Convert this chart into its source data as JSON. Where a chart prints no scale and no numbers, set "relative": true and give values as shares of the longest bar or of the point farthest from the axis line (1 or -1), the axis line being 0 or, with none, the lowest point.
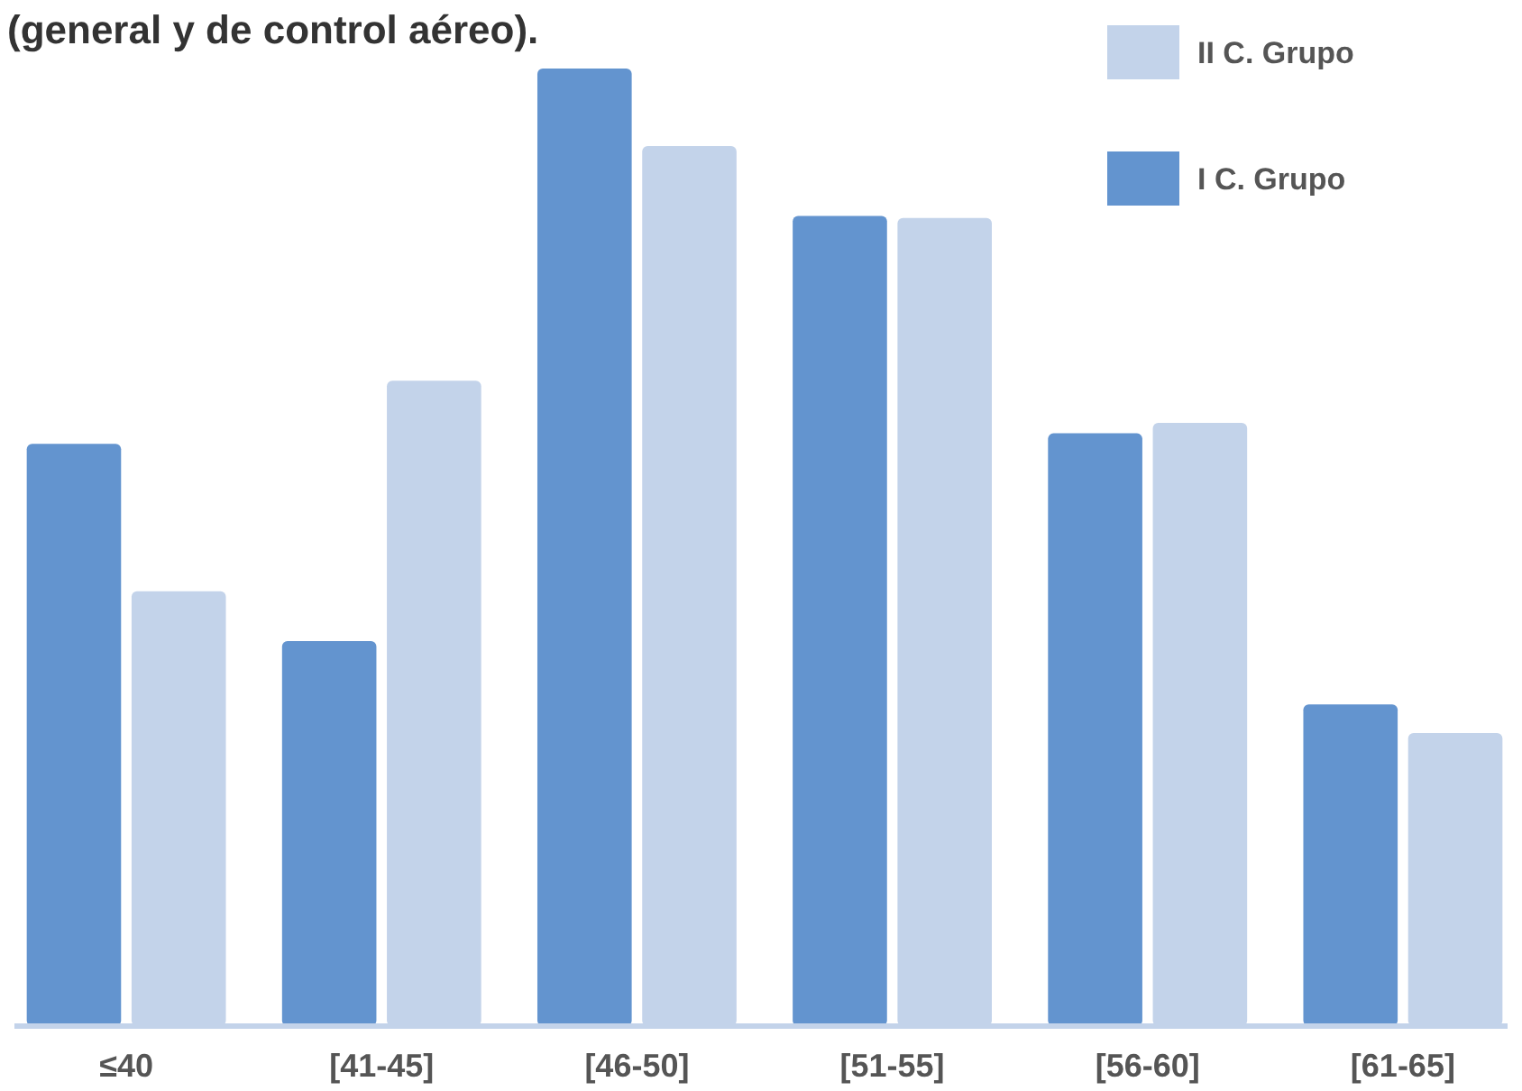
{
  "chart_data": {
    "type": "bar",
    "title": "(general y de control aéreo).",
    "relative": true,
    "legend": "top right",
    "categories": [
      "≤40",
      "[41-45]",
      "[46-50]",
      "[51-55]",
      "[56-60]",
      "[61-65]"
    ],
    "series": [
      {
        "name": "I C. Grupo",
        "color": "#6394cf",
        "values": [
          0.608,
          0.402,
          1,
          0.846,
          0.619,
          0.336
        ]
      },
      {
        "name": "II C. Grupo",
        "color": "#c3d3ea",
        "values": [
          0.454,
          0.674,
          0.919,
          0.844,
          0.63,
          0.306
        ]
      }
    ]
  }
}
